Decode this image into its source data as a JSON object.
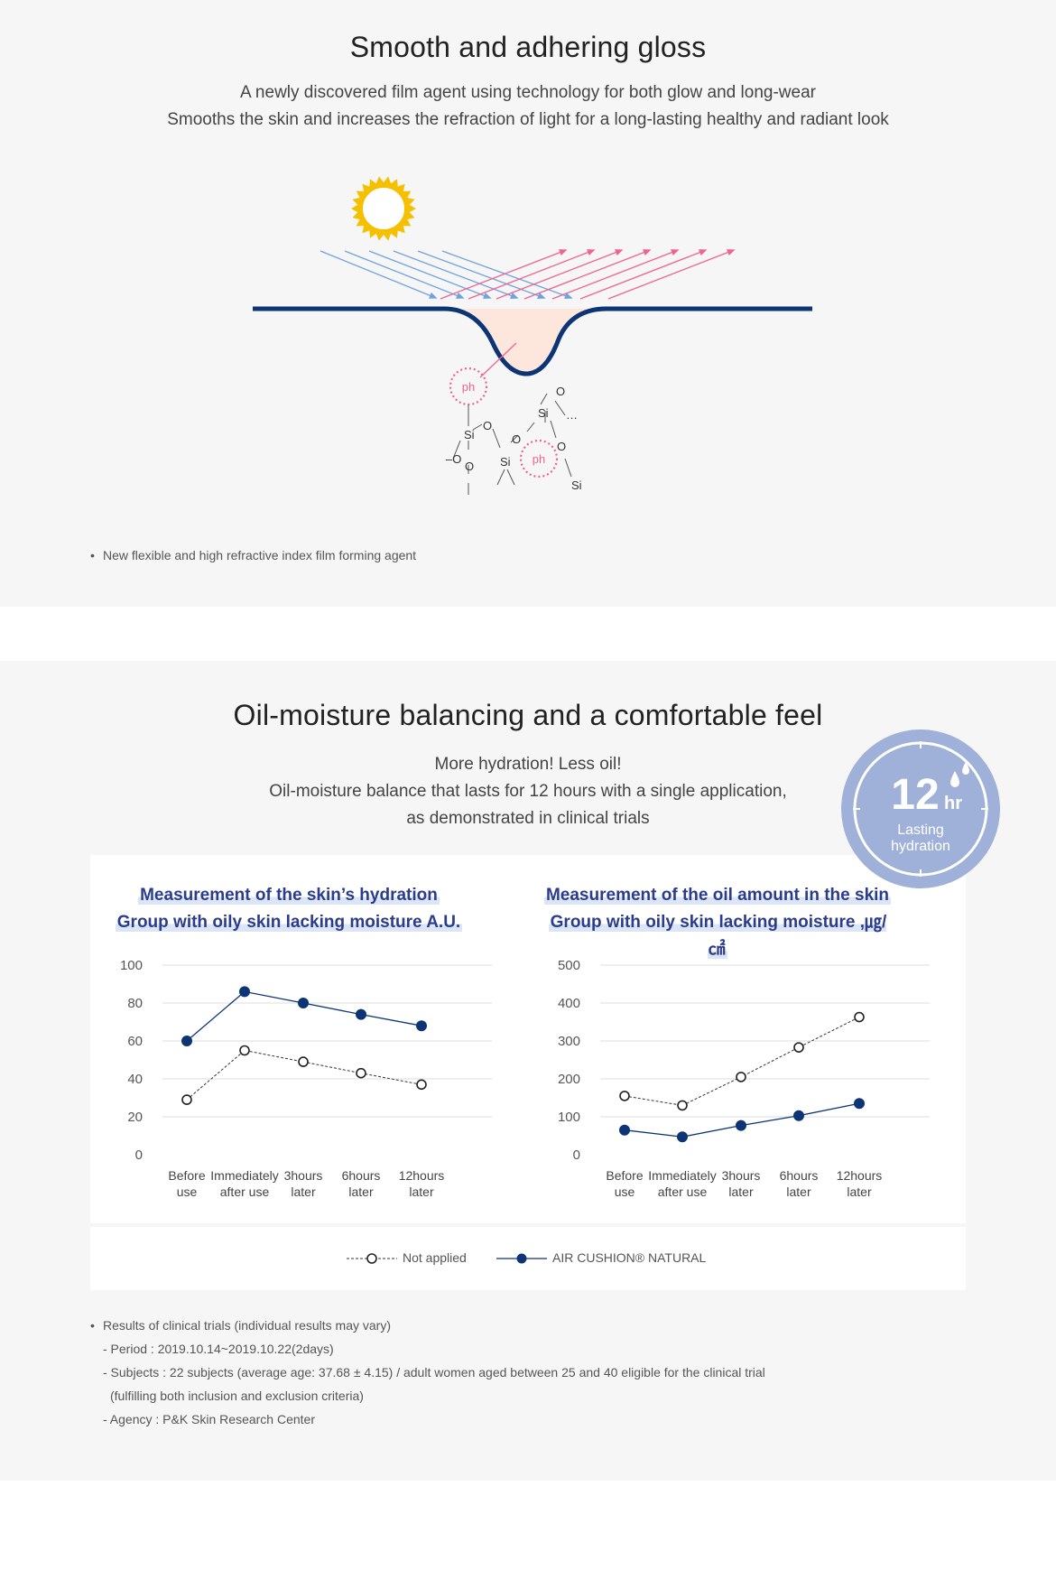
{
  "section1": {
    "heading": "Smooth and adhering gloss",
    "subtitle_line1": "A newly discovered film agent using technology for both glow and long-wear",
    "subtitle_line2": "Smooths the skin and increases the refraction of light for a long-lasting healthy and radiant look",
    "diagram_labels": {
      "ph": "ph",
      "si": "Si",
      "o": "O",
      "dash_o": "–O",
      "ellipsis": "…"
    },
    "note": "New flexible and high refractive index film forming agent",
    "bullet": "•"
  },
  "section2": {
    "heading": "Oil-moisture balancing and a comfortable feel",
    "subtitle_line1": "More hydration! Less oil!",
    "subtitle_line2": "Oil-moisture balance that lasts for 12 hours with a single application,",
    "subtitle_line3": "as demonstrated in clinical trials",
    "badge": {
      "number": "12",
      "unit": "hr",
      "line1": "Lasting",
      "line2": "hydration"
    },
    "legend": {
      "not_applied": "Not applied",
      "product": "AIR CUSHION® NATURAL"
    },
    "footnotes": {
      "bullet": "•",
      "title": "Results of clinical trials (individual results may vary)",
      "period": "- Period : 2019.10.14~2019.10.22(2days)",
      "subjects": "- Subjects : 22 subjects (average age: 37.68 ± 4.15) / adult women aged between 25 and 40 eligible for the clinical trial",
      "subjects_cont": "(fulfilling both inclusion and exclusion criteria)",
      "agency": "- Agency : P&K Skin Research Center"
    }
  },
  "colors": {
    "panel_bg": "#f6f6f6",
    "navy": "#0d3575",
    "title_blue": "#2b3c8c",
    "pink": "#f06292",
    "sun": "#f5c000",
    "badge": "#9fb1d8"
  },
  "chart_data": [
    {
      "type": "line",
      "title_line1": "Measurement of the skin’s hydration",
      "title_line2": "Group with oily skin lacking moisture A.U.",
      "categories": [
        [
          "Before",
          "use"
        ],
        [
          "Immediately",
          "after use"
        ],
        [
          "3hours",
          "later"
        ],
        [
          "6hours",
          "later"
        ],
        [
          "12hours",
          "later"
        ]
      ],
      "yticks": [
        0,
        20,
        40,
        60,
        80,
        100
      ],
      "ylim": [
        0,
        100
      ],
      "series": [
        {
          "name": "Not applied",
          "values": [
            29,
            55,
            49,
            43,
            37
          ]
        },
        {
          "name": "AIR CUSHION® NATURAL",
          "values": [
            60,
            86,
            80,
            74,
            68
          ]
        }
      ]
    },
    {
      "type": "line",
      "title_line1": "Measurement of the oil amount in the skin",
      "title_line2": "Group with oily skin lacking moisture ,㎍/㎠",
      "categories": [
        [
          "Before",
          "use"
        ],
        [
          "Immediately",
          "after use"
        ],
        [
          "3hours",
          "later"
        ],
        [
          "6hours",
          "later"
        ],
        [
          "12hours",
          "later"
        ]
      ],
      "yticks": [
        0,
        100,
        200,
        300,
        400,
        500
      ],
      "ylim": [
        0,
        500
      ],
      "series": [
        {
          "name": "Not applied",
          "values": [
            155,
            130,
            205,
            283,
            363
          ]
        },
        {
          "name": "AIR CUSHION® NATURAL",
          "values": [
            65,
            47,
            77,
            103,
            135
          ]
        }
      ]
    }
  ]
}
